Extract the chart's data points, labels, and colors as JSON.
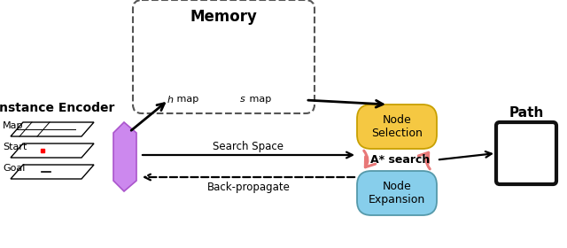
{
  "bg_color": "#ffffff",
  "title_memory": "Memory",
  "label_h_map": " map",
  "label_s_map": " map",
  "label_h_italic": "h",
  "label_s_italic": "s",
  "label_instance_encoder": "Instance Encoder",
  "label_map": "Map",
  "label_start": "Start",
  "label_goal": "Goal",
  "label_node_selection": "Node\nSelection",
  "label_node_expansion": "Node\nExpansion",
  "label_astar": "A* search",
  "label_search_space": "Search Space",
  "label_back_propagate": "Back-propagate",
  "label_path": "Path",
  "node_selection_color": "#F5C842",
  "node_expansion_color": "#87CEEB",
  "purple_panel_color": "#CC88EE",
  "purple_edge_color": "#AA55CC",
  "path_box_color": "#111111",
  "arrow_pink": "#E87878",
  "arrow_black": "#000000"
}
